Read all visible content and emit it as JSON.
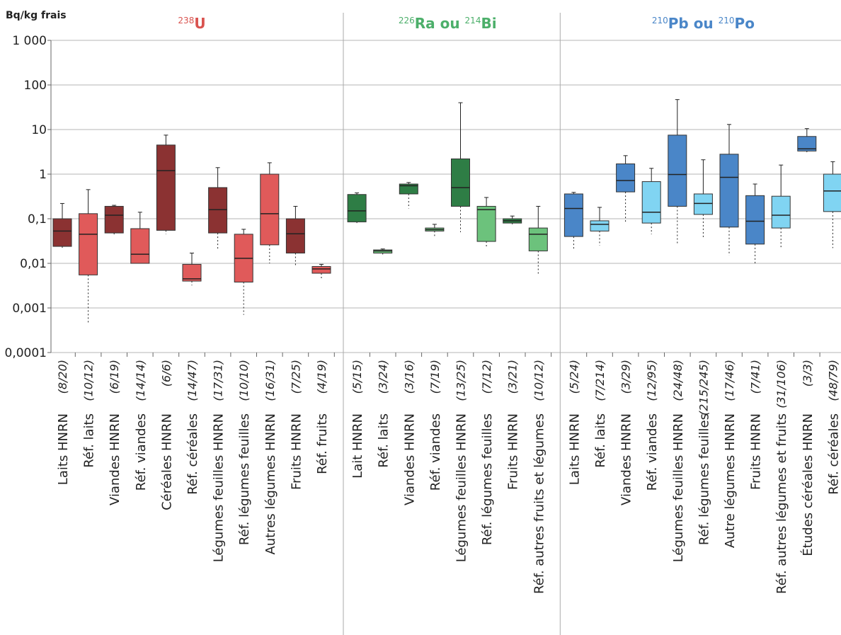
{
  "chart_data": {
    "type": "box",
    "ylabel": "Bq/kg frais",
    "log_scale": true,
    "grid": true,
    "ylim": [
      0.0001,
      1000
    ],
    "yticks": [
      {
        "value": 1000,
        "label": "1 000"
      },
      100,
      10,
      1,
      {
        "value": 0.1,
        "label": "0,1"
      },
      {
        "value": 0.01,
        "label": "0,01"
      },
      {
        "value": 0.001,
        "label": "0,001"
      },
      {
        "value": 0.0001,
        "label": "0,0001"
      }
    ],
    "groups": [
      {
        "title": [
          {
            "text": "238",
            "sup": true
          },
          {
            "text": "U",
            "sup": false
          }
        ],
        "title_color": "#d9534f",
        "categories": [
          "Laits HNRN",
          "Réf. laits",
          "Viandes HNRN",
          "Réf. viandes",
          "Céréales HNRN",
          "Réf. céréales",
          "Légumes feuilles HNRN",
          "Réf. légumes feuilles",
          "Autres légumes HNRN",
          "Fruits HNRN",
          "Réf. fruits"
        ],
        "counts": [
          "(8/20)",
          "(10/12)",
          "(6/19)",
          "(14/14)",
          "(6/6)",
          "(14/47)",
          "(17/31)",
          "(10/10)",
          "(16/31)",
          "(7/25)",
          "(4/19)"
        ],
        "boxes": [
          {
            "low": 0.02,
            "q1": 0.024,
            "median": 0.053,
            "q3": 0.1,
            "high": 0.22,
            "color": "#8b3232"
          },
          {
            "low": 0.00045,
            "q1": 0.0055,
            "median": 0.045,
            "q3": 0.13,
            "high": 0.45,
            "color": "#e05a5a"
          },
          {
            "low": 0.042,
            "q1": 0.048,
            "median": 0.12,
            "q3": 0.19,
            "high": 0.2,
            "color": "#8b3232"
          },
          {
            "low": 0.01,
            "q1": 0.01,
            "median": 0.016,
            "q3": 0.06,
            "high": 0.14,
            "color": "#e05a5a"
          },
          {
            "low": 0.045,
            "q1": 0.055,
            "median": 1.2,
            "q3": 4.5,
            "high": 7.5,
            "color": "#8b3232"
          },
          {
            "low": 0.0032,
            "q1": 0.004,
            "median": 0.0045,
            "q3": 0.0095,
            "high": 0.017,
            "color": "#e05a5a"
          },
          {
            "low": 0.02,
            "q1": 0.048,
            "median": 0.16,
            "q3": 0.5,
            "high": 1.4,
            "color": "#8b3232"
          },
          {
            "low": 0.0007,
            "q1": 0.0038,
            "median": 0.013,
            "q3": 0.045,
            "high": 0.058,
            "color": "#e05a5a"
          },
          {
            "low": 0.01,
            "q1": 0.026,
            "median": 0.13,
            "q3": 1.0,
            "high": 1.8,
            "color": "#e05a5a"
          },
          {
            "low": 0.009,
            "q1": 0.017,
            "median": 0.046,
            "q3": 0.1,
            "high": 0.19,
            "color": "#8b3232"
          },
          {
            "low": 0.0045,
            "q1": 0.006,
            "median": 0.0075,
            "q3": 0.0085,
            "high": 0.0095,
            "color": "#e05a5a"
          }
        ]
      },
      {
        "title": [
          {
            "text": "226",
            "sup": true
          },
          {
            "text": "Ra ou ",
            "sup": false
          },
          {
            "text": "214",
            "sup": true
          },
          {
            "text": "Bi",
            "sup": false
          }
        ],
        "title_color": "#4caf6a",
        "categories": [
          "Lait HNRN",
          "Réf. laits",
          "Viandes HNRN",
          "Réf. viandes",
          "Légumes feuilles HNRN",
          "Réf. légumes feuilles",
          "Fruits HNRN",
          "Réf. autres fruits et légumes"
        ],
        "counts": [
          "(5/15)",
          "(3/24)",
          "(3/16)",
          "(7/19)",
          "(13/25)",
          "(7/12)",
          "(3/21)",
          "(10/12)"
        ],
        "boxes": [
          {
            "low": 0.08,
            "q1": 0.085,
            "median": 0.15,
            "q3": 0.35,
            "high": 0.38,
            "color": "#2e7d45"
          },
          {
            "low": 0.015,
            "q1": 0.017,
            "median": 0.019,
            "q3": 0.02,
            "high": 0.021,
            "color": "#6cc27c"
          },
          {
            "low": 0.17,
            "q1": 0.36,
            "median": 0.55,
            "q3": 0.6,
            "high": 0.65,
            "color": "#2e7d45"
          },
          {
            "low": 0.04,
            "q1": 0.053,
            "median": 0.057,
            "q3": 0.062,
            "high": 0.075,
            "color": "#6cc27c"
          },
          {
            "low": 0.05,
            "q1": 0.19,
            "median": 0.5,
            "q3": 2.2,
            "high": 40,
            "color": "#2e7d45"
          },
          {
            "low": 0.022,
            "q1": 0.031,
            "median": 0.16,
            "q3": 0.19,
            "high": 0.3,
            "color": "#6cc27c"
          },
          {
            "low": 0.075,
            "q1": 0.08,
            "median": 0.09,
            "q3": 0.1,
            "high": 0.115,
            "color": "#2e7d45"
          },
          {
            "low": 0.0055,
            "q1": 0.019,
            "median": 0.045,
            "q3": 0.062,
            "high": 0.19,
            "color": "#6cc27c"
          }
        ]
      },
      {
        "title": [
          {
            "text": "210",
            "sup": true
          },
          {
            "text": "Pb ou ",
            "sup": false
          },
          {
            "text": "210",
            "sup": true
          },
          {
            "text": "Po",
            "sup": false
          }
        ],
        "title_color": "#4a86c8",
        "categories": [
          "Laits HNRN",
          "Réf. laits",
          "Viandes HNRN",
          "Réf. viandes",
          "Légumes feuilles HNRN",
          "Réf. légumes feuilles",
          "Autre légumes HNRN",
          "Fruits HNRN",
          "Réf. autres légumes et fruits",
          "Études céréales HNRN",
          "Réf. céréales"
        ],
        "counts": [
          "(5/24)",
          "(7/214)",
          "(3/29)",
          "(12/95)",
          "(24/48)",
          "(215/245)",
          "(17/46)",
          "(7/41)",
          "(31/106)",
          "(3/3)",
          "(48/79)"
        ],
        "boxes": [
          {
            "low": 0.02,
            "q1": 0.04,
            "median": 0.17,
            "q3": 0.36,
            "high": 0.39,
            "color": "#4a86c8"
          },
          {
            "low": 0.025,
            "q1": 0.053,
            "median": 0.075,
            "q3": 0.09,
            "high": 0.18,
            "color": "#80d4f2"
          },
          {
            "low": 0.08,
            "q1": 0.4,
            "median": 0.72,
            "q3": 1.7,
            "high": 2.6,
            "color": "#4a86c8"
          },
          {
            "low": 0.045,
            "q1": 0.08,
            "median": 0.14,
            "q3": 0.68,
            "high": 1.35,
            "color": "#80d4f2"
          },
          {
            "low": 0.027,
            "q1": 0.19,
            "median": 0.98,
            "q3": 7.5,
            "high": 47,
            "color": "#4a86c8"
          },
          {
            "low": 0.037,
            "q1": 0.125,
            "median": 0.22,
            "q3": 0.36,
            "high": 2.1,
            "color": "#80d4f2"
          },
          {
            "low": 0.015,
            "q1": 0.065,
            "median": 0.85,
            "q3": 2.8,
            "high": 13,
            "color": "#4a86c8"
          },
          {
            "low": 0.01,
            "q1": 0.027,
            "median": 0.088,
            "q3": 0.33,
            "high": 0.6,
            "color": "#4a86c8"
          },
          {
            "low": 0.021,
            "q1": 0.062,
            "median": 0.12,
            "q3": 0.32,
            "high": 1.6,
            "color": "#80d4f2"
          },
          {
            "low": 3.1,
            "q1": 3.3,
            "median": 3.7,
            "q3": 7,
            "high": 10.5,
            "color": "#4a86c8"
          },
          {
            "low": 0.022,
            "q1": 0.145,
            "median": 0.42,
            "q3": 1.0,
            "high": 1.9,
            "color": "#80d4f2"
          }
        ]
      }
    ]
  }
}
